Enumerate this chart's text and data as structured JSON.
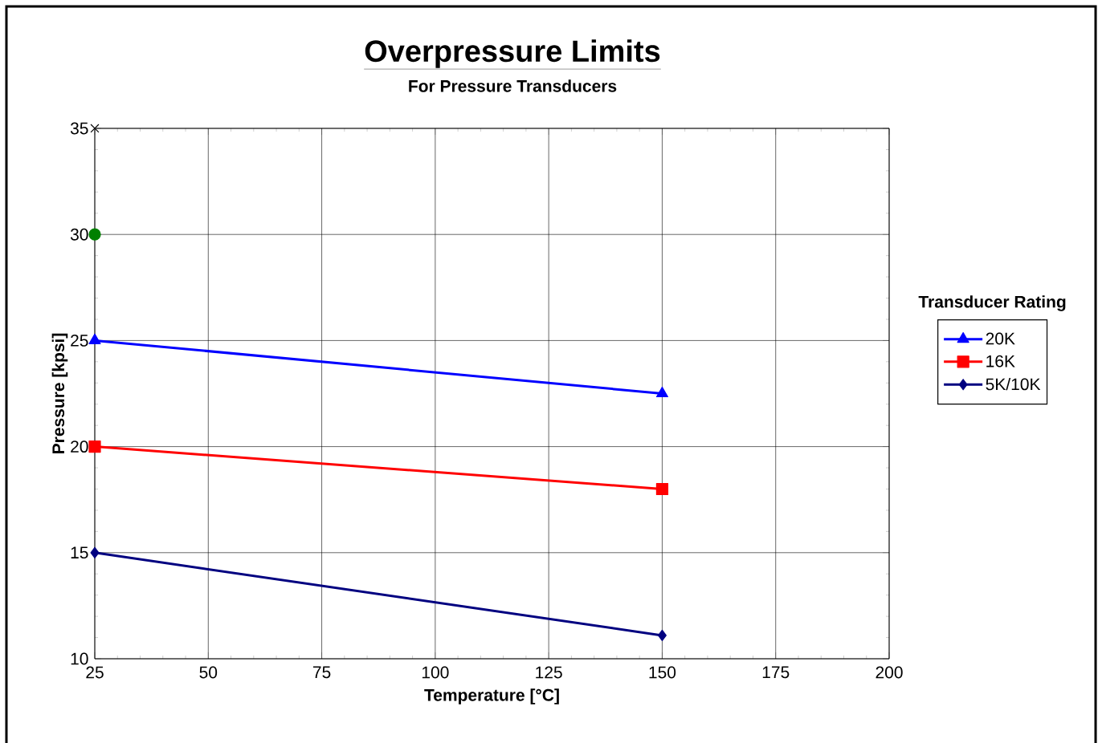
{
  "chart_data": {
    "type": "line",
    "title": "Overpressure Limits",
    "subtitle": "For Pressure Transducers",
    "xlabel": "Temperature [°C]",
    "ylabel": "Pressure [kpsi]",
    "legend_title": "Transducer Rating",
    "x": [
      25,
      150
    ],
    "series": [
      {
        "name": "20K",
        "color": "#0000ff",
        "marker": "triangle",
        "values": [
          25,
          22.5
        ]
      },
      {
        "name": "16K",
        "color": "#ff0000",
        "marker": "square",
        "values": [
          20,
          18
        ]
      },
      {
        "name": "5K/10K",
        "color": "#000080",
        "marker": "diamond",
        "values": [
          15,
          11.1
        ]
      },
      {
        "type": "scatter",
        "color": "#008000",
        "marker": "circle",
        "x": [
          25
        ],
        "values": [
          30
        ]
      },
      {
        "type": "scatter",
        "color": "#000000",
        "marker": "cross",
        "x": [
          25
        ],
        "values": [
          35
        ]
      }
    ],
    "xlim": [
      25,
      200
    ],
    "ylim": [
      10,
      35
    ],
    "xticks": [
      25,
      50,
      75,
      100,
      125,
      150,
      175,
      200
    ],
    "yticks": [
      10,
      15,
      20,
      25,
      30,
      35
    ],
    "grid": true,
    "legend": "right",
    "line_style": "solid"
  }
}
